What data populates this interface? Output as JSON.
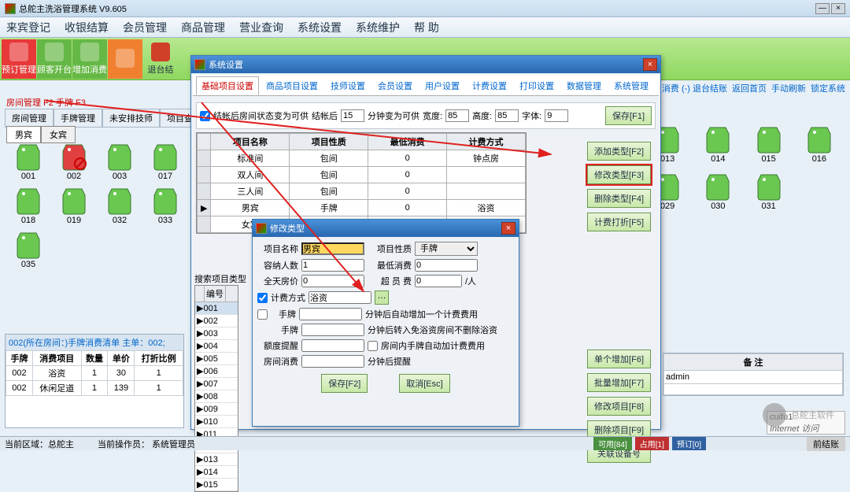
{
  "title": "总舵主洗浴管理系统  V9.605",
  "menus": [
    "来宾登记",
    "收银结算",
    "会员管理",
    "商品管理",
    "营业查询",
    "系统设置",
    "系统维护",
    "帮  助"
  ],
  "toolbar": [
    {
      "label": "预订管理",
      "cls": "red"
    },
    {
      "label": "顾客开台",
      "cls": "grn"
    },
    {
      "label": "增加消费",
      "cls": "grn"
    },
    {
      "label": "",
      "cls": "or"
    },
    {
      "label": "退台结"
    }
  ],
  "rightLinks": [
    "增加消费 (-) 退台结账",
    "返回首页",
    "手动刷新",
    "锁定系统"
  ],
  "subRibbon": "房间管理 F2  手牌 F3",
  "mainTabs": [
    "房间管理",
    "手牌管理",
    "未安排技师",
    "项目查"
  ],
  "gender": {
    "m": "男宾",
    "f": "女宾"
  },
  "roomsL": [
    "001",
    "002",
    "003",
    "017",
    "018",
    "019",
    "032",
    "033",
    "035"
  ],
  "roomsR": [
    "013",
    "014",
    "015",
    "016",
    "029",
    "030",
    "031"
  ],
  "consumeHdr": "002(所在房间：)手牌消费清单   主单：002;",
  "consumeCols": [
    "手牌",
    "消费项目",
    "数量",
    "单价",
    "打折比例"
  ],
  "consumeRows": [
    [
      "002",
      "浴资",
      "1",
      "30",
      "1"
    ],
    [
      "002",
      "休闲足道",
      "1",
      "139",
      "1"
    ]
  ],
  "sysDlg": {
    "title": "系统设置",
    "tabs": [
      "基础项目设置",
      "商品项目设置",
      "技师设置",
      "会员设置",
      "用户设置",
      "计费设置",
      "打印设置",
      "数据管理",
      "系统管理"
    ],
    "checkLabel": "结帐后房间状态变为可供",
    "afterLabel": "结帐后",
    "afterVal": "15",
    "minLabel": "分钟变为可供",
    "wLabel": "宽度:",
    "wVal": "85",
    "hLabel": "高度:",
    "hVal": "85",
    "fLabel": "字体:",
    "fVal": "9",
    "saveBtn": "保存[F1]",
    "projCols": [
      "项目名称",
      "项目性质",
      "最低消费",
      "计费方式"
    ],
    "projRows": [
      [
        "标准间",
        "包间",
        "0",
        "钟点房"
      ],
      [
        "双人间",
        "包间",
        "0",
        ""
      ],
      [
        "三人间",
        "包间",
        "0",
        ""
      ],
      [
        "男宾",
        "手牌",
        "0",
        "浴资"
      ],
      [
        "女宾",
        "手牌",
        "0",
        "浴资"
      ]
    ],
    "btns1": [
      "添加类型[F2]",
      "修改类型[F3]",
      "删除类型[F4]",
      "计费打折[F5]"
    ],
    "searchLabel": "搜索项目类型",
    "numCols": "编号",
    "nums": [
      "001",
      "002",
      "003",
      "004",
      "005",
      "006",
      "007",
      "008",
      "009",
      "010",
      "011",
      "012",
      "013",
      "014",
      "015"
    ],
    "btns2": [
      "单个增加[F6]",
      "批量增加[F7]",
      "修改项目[F8]",
      "删除项目[F9]",
      "关联设备号"
    ]
  },
  "modDlg": {
    "title": "修改类型",
    "r1a": "项目名称",
    "r1av": "男宾",
    "r1b": "项目性质",
    "r1bv": "手牌",
    "r2a": "容纳人数",
    "r2av": "1",
    "r2b": "最低消费",
    "r2bv": "0",
    "r3a": "全天房价",
    "r3av": "0",
    "r3b": "超 员 费",
    "r3bv": "0",
    "r3u": "/人",
    "r4a": "计费方式",
    "r4av": "浴资",
    "r5a": "手牌",
    "r5b": "分钟后自动增加一个计费费用",
    "r6a": "手牌",
    "r6b": "分钟后转入免浴资房间不删除浴资",
    "r7a": "额度提醒",
    "r7b": "房间内手牌自动加计费费用",
    "r8a": "房间消费",
    "r8b": "分钟后提醒",
    "save": "保存[F2]",
    "cancel": "取消[Esc]"
  },
  "status": {
    "area": "当前区域：总舵主",
    "op": "当前操作员：  系统管理员",
    "avail": "可用[84]",
    "busy": "占用[1]",
    "pre": "预订[0]",
    "user": "cuifu1",
    "net": "Internet 访问"
  },
  "remark": "备  注",
  "admin": "admin",
  "watermark": "总舵主软件"
}
